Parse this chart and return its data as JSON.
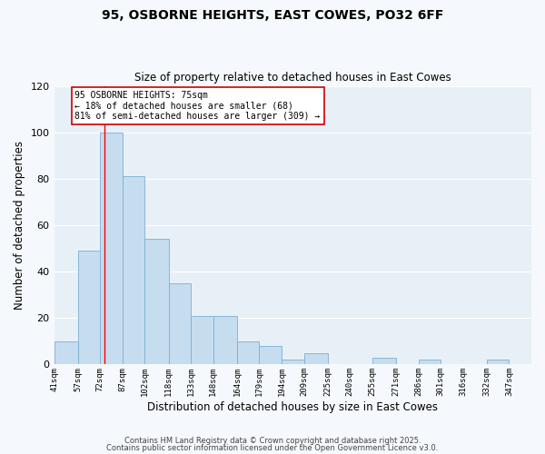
{
  "title": "95, OSBORNE HEIGHTS, EAST COWES, PO32 6FF",
  "subtitle": "Size of property relative to detached houses in East Cowes",
  "xlabel": "Distribution of detached houses by size in East Cowes",
  "ylabel": "Number of detached properties",
  "bar_color": "#c6dcef",
  "bar_edge_color": "#7ab0d4",
  "plot_bg_color": "#e8f0f7",
  "fig_bg_color": "#f5f8fc",
  "grid_color": "#ffffff",
  "bins": [
    41,
    57,
    72,
    87,
    102,
    118,
    133,
    148,
    164,
    179,
    194,
    209,
    225,
    240,
    255,
    271,
    286,
    301,
    316,
    332,
    347
  ],
  "bin_labels": [
    "41sqm",
    "57sqm",
    "72sqm",
    "87sqm",
    "102sqm",
    "118sqm",
    "133sqm",
    "148sqm",
    "164sqm",
    "179sqm",
    "194sqm",
    "209sqm",
    "225sqm",
    "240sqm",
    "255sqm",
    "271sqm",
    "286sqm",
    "301sqm",
    "316sqm",
    "332sqm",
    "347sqm"
  ],
  "counts": [
    10,
    49,
    100,
    81,
    54,
    35,
    21,
    21,
    10,
    8,
    2,
    5,
    0,
    0,
    3,
    0,
    2,
    0,
    0,
    2
  ],
  "red_line_x": 75,
  "annotation_title": "95 OSBORNE HEIGHTS: 75sqm",
  "annotation_line1": "← 18% of detached houses are smaller (68)",
  "annotation_line2": "81% of semi-detached houses are larger (309) →",
  "ylim": [
    0,
    120
  ],
  "yticks": [
    0,
    20,
    40,
    60,
    80,
    100,
    120
  ],
  "footer1": "Contains HM Land Registry data © Crown copyright and database right 2025.",
  "footer2": "Contains public sector information licensed under the Open Government Licence v3.0."
}
